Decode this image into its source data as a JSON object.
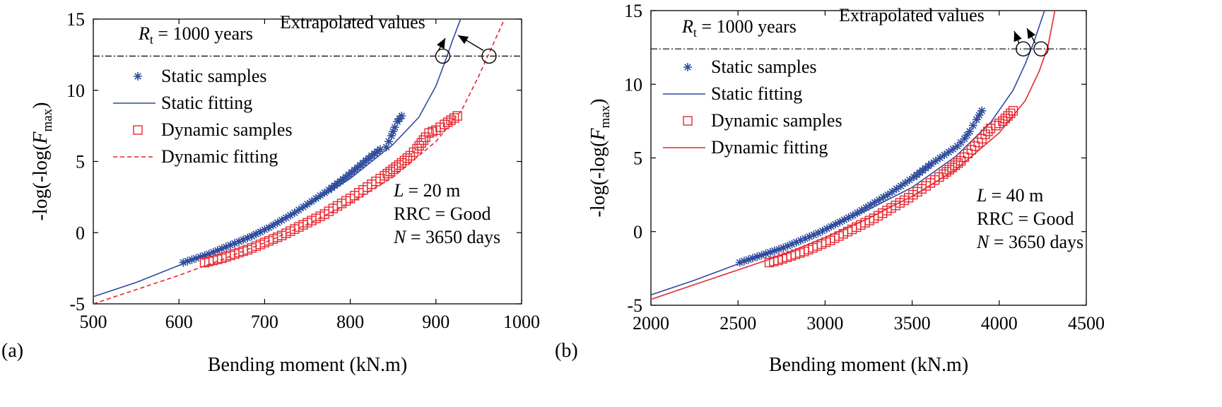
{
  "chart_data": [
    {
      "panel_label": "(a)",
      "type": "scatter",
      "xlabel": "Bending moment (kN.m)",
      "ylabel": "-log(-log(F_max)",
      "xlim": [
        500,
        1000
      ],
      "ylim": [
        -5,
        15
      ],
      "xticks": [
        "500",
        "600",
        "700",
        "800",
        "900",
        "1000"
      ],
      "yticks": [
        "-5",
        "0",
        "5",
        "10",
        "15"
      ],
      "rt_label": "= 1000 years",
      "rt_value": 12.4,
      "extrapolated_label": "Extrapolated values",
      "info": [
        "= 20 m",
        "RRC = Good",
        "= 3650 days"
      ],
      "legend": [
        "Static samples",
        "Static fitting",
        "Dynamic samples",
        "Dynamic fitting"
      ],
      "series": [
        {
          "name": "Static samples",
          "kind": "points",
          "color": "#2E4C9E",
          "x": [
            605,
            615,
            625,
            635,
            645,
            655,
            665,
            675,
            685,
            695,
            705,
            715,
            725,
            735,
            745,
            755,
            765,
            775,
            785,
            795,
            805,
            815,
            825,
            835,
            842,
            845,
            848,
            850,
            852,
            855,
            860
          ],
          "y": [
            -2.1,
            -1.9,
            -1.7,
            -1.5,
            -1.25,
            -1.0,
            -0.75,
            -0.5,
            -0.25,
            0.05,
            0.35,
            0.7,
            1.05,
            1.4,
            1.8,
            2.2,
            2.6,
            3.0,
            3.45,
            3.9,
            4.4,
            4.9,
            5.4,
            5.85,
            6.0,
            6.4,
            6.8,
            7.1,
            7.4,
            7.8,
            8.2
          ]
        },
        {
          "name": "Static fitting",
          "kind": "line",
          "color": "#2E4C9E",
          "x": [
            500,
            550,
            600,
            650,
            700,
            750,
            800,
            850,
            880,
            900,
            910,
            920,
            930
          ],
          "y": [
            -4.5,
            -3.5,
            -2.3,
            -1.1,
            0.3,
            1.9,
            3.8,
            6.2,
            8.1,
            10.3,
            11.9,
            13.6,
            15.2
          ]
        },
        {
          "name": "Dynamic samples",
          "kind": "points",
          "color": "#E8262E",
          "x": [
            630,
            640,
            650,
            660,
            670,
            680,
            690,
            700,
            710,
            720,
            730,
            740,
            750,
            760,
            770,
            780,
            790,
            800,
            810,
            820,
            830,
            840,
            850,
            860,
            870,
            878,
            883,
            888,
            892,
            900,
            910,
            925
          ],
          "y": [
            -2.1,
            -1.95,
            -1.8,
            -1.6,
            -1.4,
            -1.2,
            -0.95,
            -0.7,
            -0.45,
            -0.2,
            0.1,
            0.4,
            0.7,
            1.0,
            1.3,
            1.7,
            2.05,
            2.4,
            2.8,
            3.2,
            3.6,
            4.0,
            4.45,
            4.9,
            5.4,
            5.9,
            6.3,
            6.7,
            7.0,
            7.2,
            7.6,
            8.2
          ]
        },
        {
          "name": "Dynamic fitting",
          "kind": "line",
          "color": "#E8262E",
          "dashed": true,
          "x": [
            500,
            550,
            600,
            650,
            700,
            750,
            800,
            850,
            900,
            930,
            950,
            965,
            980
          ],
          "y": [
            -5.0,
            -4.0,
            -3.0,
            -1.9,
            -0.7,
            0.6,
            2.1,
            3.9,
            6.4,
            8.6,
            11.0,
            13.0,
            15.0
          ]
        }
      ],
      "circles": [
        {
          "x": 908,
          "y": 12.4
        },
        {
          "x": 962,
          "y": 12.4
        }
      ]
    },
    {
      "panel_label": "(b)",
      "type": "scatter",
      "xlabel": "Bending moment (kN.m)",
      "ylabel": "-log(-log(F_max)",
      "xlim": [
        2000,
        4500
      ],
      "ylim": [
        -5,
        15
      ],
      "xticks": [
        "2000",
        "2500",
        "3000",
        "3500",
        "4000",
        "4500"
      ],
      "yticks": [
        "-5",
        "0",
        "5",
        "10",
        "15"
      ],
      "rt_label": "= 1000 years",
      "rt_value": 12.4,
      "extrapolated_label": "Extrapolated values",
      "info": [
        "= 40 m",
        "RRC = Good",
        "= 3650 days"
      ],
      "legend": [
        "Static samples",
        "Static fitting",
        "Dynamic samples",
        "Dynamic fitting"
      ],
      "series": [
        {
          "name": "Static samples",
          "kind": "points",
          "color": "#2E4C9E",
          "x": [
            2510,
            2560,
            2610,
            2660,
            2710,
            2760,
            2810,
            2860,
            2910,
            2960,
            3010,
            3060,
            3110,
            3160,
            3210,
            3260,
            3310,
            3360,
            3410,
            3460,
            3510,
            3560,
            3610,
            3660,
            3710,
            3760,
            3800,
            3830,
            3850,
            3870,
            3900
          ],
          "y": [
            -2.1,
            -1.9,
            -1.7,
            -1.5,
            -1.3,
            -1.1,
            -0.85,
            -0.6,
            -0.35,
            -0.1,
            0.2,
            0.5,
            0.8,
            1.1,
            1.45,
            1.8,
            2.15,
            2.5,
            2.9,
            3.3,
            3.7,
            4.15,
            4.6,
            5.0,
            5.4,
            5.8,
            6.3,
            6.8,
            7.2,
            7.6,
            8.2
          ]
        },
        {
          "name": "Static fitting",
          "kind": "line",
          "color": "#2E4C9E",
          "x": [
            2000,
            2250,
            2500,
            2750,
            3000,
            3250,
            3500,
            3750,
            3950,
            4080,
            4150,
            4200,
            4260
          ],
          "y": [
            -4.3,
            -3.3,
            -2.2,
            -1.1,
            0.2,
            1.5,
            3.0,
            5.1,
            7.4,
            9.6,
            11.4,
            12.9,
            15.0
          ]
        },
        {
          "name": "Dynamic samples",
          "kind": "points",
          "color": "#E8262E",
          "x": [
            2680,
            2730,
            2780,
            2830,
            2880,
            2930,
            2980,
            3030,
            3080,
            3130,
            3180,
            3230,
            3280,
            3330,
            3380,
            3430,
            3480,
            3530,
            3580,
            3630,
            3680,
            3730,
            3780,
            3820,
            3860,
            3900,
            3920,
            3950,
            3980,
            4020,
            4080
          ],
          "y": [
            -2.1,
            -1.95,
            -1.75,
            -1.55,
            -1.35,
            -1.1,
            -0.85,
            -0.6,
            -0.3,
            0.0,
            0.3,
            0.6,
            0.9,
            1.25,
            1.6,
            1.95,
            2.3,
            2.7,
            3.1,
            3.5,
            3.9,
            4.35,
            4.8,
            5.3,
            5.8,
            6.3,
            6.6,
            7.0,
            7.2,
            7.5,
            8.2
          ]
        },
        {
          "name": "Dynamic fitting",
          "kind": "line",
          "color": "#E8262E",
          "x": [
            2000,
            2250,
            2500,
            2750,
            3000,
            3250,
            3500,
            3750,
            4000,
            4150,
            4230,
            4280,
            4320
          ],
          "y": [
            -4.6,
            -3.6,
            -2.6,
            -1.6,
            -0.4,
            0.9,
            2.4,
            4.2,
            6.7,
            8.9,
            10.9,
            12.6,
            15.0
          ]
        }
      ],
      "circles": [
        {
          "x": 4138,
          "y": 12.4
        },
        {
          "x": 4240,
          "y": 12.4
        }
      ]
    }
  ]
}
